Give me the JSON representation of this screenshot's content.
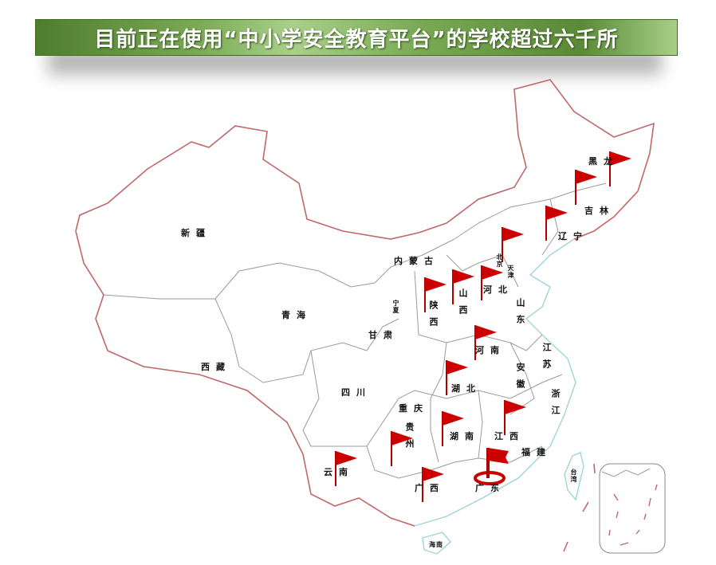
{
  "title": "目前正在使用“中小学安全教育平台”的学校超过六千所",
  "colors": {
    "border": "#c0676a",
    "inner_border": "#9a9a9a",
    "coast": "#9fd4d6",
    "flag": "#cc0000",
    "title_bg": "#6f9f48"
  },
  "provinces": [
    "黑龙",
    "吉林",
    "辽宁",
    "北京",
    "天津",
    "河北",
    "内蒙古",
    "山西",
    "山东",
    "宁夏",
    "陕西",
    "甘肃",
    "青海",
    "新疆",
    "西藏",
    "河南",
    "江苏",
    "安徽",
    "湖北",
    "四川",
    "重庆",
    "浙江",
    "贵州",
    "湖南",
    "江西",
    "福建",
    "云南",
    "广西",
    "广东",
    "台湾",
    "海南"
  ],
  "flag_icon": "red-flag-icon",
  "highlight_icon": "target-ring-icon"
}
